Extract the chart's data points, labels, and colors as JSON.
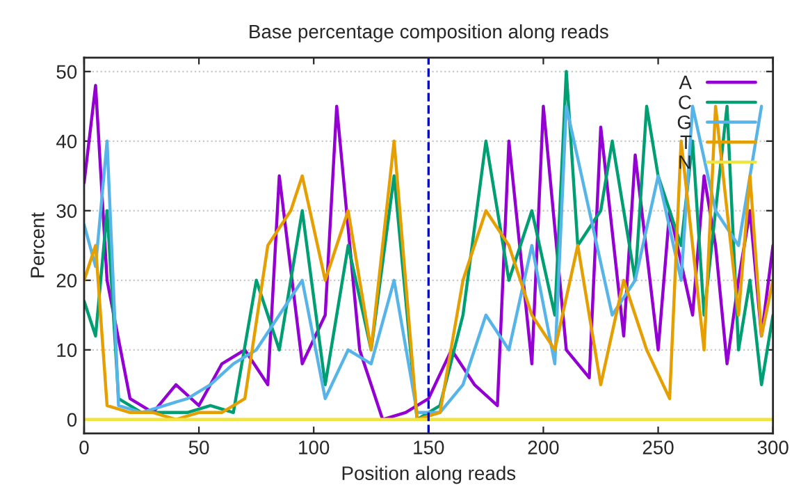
{
  "chart_data": {
    "type": "line",
    "title": "Base percentage composition along reads",
    "xlabel": "Position along reads",
    "ylabel": "Percent",
    "x": [
      0,
      5,
      10,
      15,
      20,
      25,
      30,
      35,
      40,
      45,
      50,
      55,
      60,
      65,
      70,
      75,
      80,
      85,
      90,
      95,
      100,
      105,
      110,
      115,
      120,
      125,
      130,
      135,
      140,
      145,
      150,
      155,
      160,
      165,
      170,
      175,
      180,
      185,
      190,
      195,
      200,
      205,
      210,
      215,
      220,
      225,
      230,
      235,
      240,
      245,
      250,
      255,
      260,
      265,
      270,
      275,
      280,
      285,
      290,
      295,
      300
    ],
    "series": [
      {
        "name": "A",
        "color": "#9400d3",
        "values": [
          34,
          48,
          20,
          null,
          3,
          null,
          1,
          null,
          5,
          null,
          2,
          null,
          8,
          null,
          10,
          null,
          5,
          35,
          null,
          8,
          null,
          15,
          45,
          null,
          10,
          null,
          0,
          null,
          1,
          null,
          3,
          null,
          10,
          null,
          5,
          null,
          2,
          40,
          null,
          8,
          45,
          null,
          10,
          null,
          6,
          42,
          null,
          12,
          38,
          null,
          10,
          30,
          null,
          15,
          35,
          25,
          8,
          20,
          30,
          12,
          25
        ]
      },
      {
        "name": "C",
        "color": "#009e73",
        "values": [
          17,
          12,
          30,
          3,
          null,
          1,
          null,
          1,
          null,
          1,
          null,
          2,
          null,
          1,
          null,
          20,
          null,
          10,
          null,
          30,
          null,
          5,
          null,
          25,
          null,
          10,
          null,
          35,
          null,
          0,
          null,
          2,
          null,
          15,
          null,
          40,
          null,
          20,
          null,
          30,
          null,
          15,
          50,
          25,
          null,
          30,
          40,
          null,
          20,
          45,
          35,
          null,
          25,
          40,
          15,
          30,
          45,
          10,
          20,
          5,
          15
        ]
      },
      {
        "name": "G",
        "color": "#56b4e9",
        "values": [
          28,
          22,
          40,
          2,
          null,
          1,
          null,
          2,
          null,
          3,
          null,
          5,
          null,
          8,
          null,
          10,
          null,
          15,
          null,
          20,
          null,
          3,
          null,
          10,
          null,
          8,
          null,
          20,
          null,
          1,
          null,
          1,
          null,
          5,
          null,
          15,
          null,
          10,
          null,
          25,
          null,
          8,
          45,
          null,
          30,
          null,
          15,
          null,
          20,
          null,
          35,
          null,
          20,
          45,
          null,
          30,
          null,
          25,
          null,
          45,
          null
        ]
      },
      {
        "name": "T",
        "color": "#e69f00",
        "values": [
          20,
          25,
          2,
          null,
          1,
          null,
          1,
          null,
          0,
          null,
          1,
          null,
          1,
          null,
          3,
          null,
          25,
          null,
          30,
          35,
          null,
          20,
          null,
          30,
          null,
          10,
          null,
          40,
          null,
          0,
          null,
          1,
          null,
          20,
          null,
          30,
          null,
          25,
          null,
          15,
          null,
          10,
          null,
          25,
          null,
          5,
          null,
          20,
          null,
          10,
          null,
          3,
          40,
          null,
          10,
          45,
          null,
          15,
          35,
          12,
          20
        ]
      },
      {
        "name": "N",
        "color": "#f0e442",
        "values": [
          0,
          0,
          0,
          0,
          0,
          0,
          0,
          0,
          0,
          0,
          0,
          0,
          0,
          0,
          0,
          0,
          0,
          0,
          0,
          0,
          0,
          0,
          0,
          0,
          0,
          0,
          0,
          0,
          0,
          0,
          0,
          0,
          0,
          0,
          0,
          0,
          0,
          0,
          0,
          0,
          0,
          0,
          0,
          0,
          0,
          0,
          0,
          0,
          0,
          0,
          0,
          0,
          0,
          0,
          0,
          0,
          0,
          0,
          0,
          0,
          0
        ]
      }
    ],
    "ref_lines": [
      {
        "axis": "x",
        "value": 150,
        "color": "#0000ff",
        "line_style": "dashed"
      }
    ],
    "xlim": [
      0,
      300
    ],
    "ylim": [
      -2,
      52
    ],
    "xticks": [
      0,
      50,
      100,
      150,
      200,
      250,
      300
    ],
    "yticks": [
      0,
      10,
      20,
      30,
      40,
      50
    ],
    "grid": "y",
    "legend": "top right",
    "line_style": "solid"
  }
}
